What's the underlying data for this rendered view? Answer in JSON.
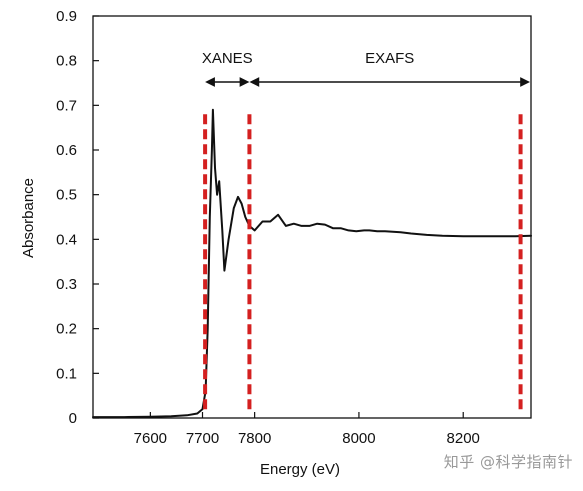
{
  "chart_data": {
    "type": "line",
    "title": "",
    "xlabel": "Energy (eV)",
    "ylabel": "Absorbance",
    "xlim": [
      7490,
      8330
    ],
    "ylim": [
      0,
      0.9
    ],
    "x_ticks": [
      7600,
      7700,
      7800,
      8000,
      8200
    ],
    "y_ticks": [
      0,
      0.1,
      0.2,
      0.3,
      0.4,
      0.5,
      0.6,
      0.7,
      0.8,
      0.9
    ],
    "y_tick_labels": [
      "0",
      "0.1",
      "0.2",
      "0.3",
      "0.4",
      "0.5",
      "0.6",
      "0.7",
      "0.8",
      "0.9"
    ],
    "grid": false,
    "series": [
      {
        "color": "#111111",
        "x": [
          7490,
          7550,
          7600,
          7640,
          7670,
          7690,
          7700,
          7706,
          7710,
          7714,
          7718,
          7720,
          7724,
          7728,
          7732,
          7738,
          7742,
          7750,
          7760,
          7768,
          7775,
          7782,
          7790,
          7800,
          7815,
          7830,
          7845,
          7860,
          7875,
          7890,
          7905,
          7920,
          7935,
          7950,
          7965,
          7980,
          7995,
          8010,
          8020,
          8035,
          8050,
          8065,
          8080,
          8100,
          8130,
          8160,
          8200,
          8250,
          8300,
          8330
        ],
        "values": [
          0.002,
          0.002,
          0.003,
          0.004,
          0.006,
          0.01,
          0.02,
          0.06,
          0.2,
          0.45,
          0.6,
          0.69,
          0.56,
          0.5,
          0.53,
          0.42,
          0.33,
          0.4,
          0.47,
          0.495,
          0.48,
          0.45,
          0.43,
          0.42,
          0.44,
          0.44,
          0.455,
          0.43,
          0.435,
          0.43,
          0.43,
          0.435,
          0.433,
          0.425,
          0.425,
          0.42,
          0.418,
          0.42,
          0.42,
          0.418,
          0.418,
          0.417,
          0.416,
          0.413,
          0.41,
          0.408,
          0.407,
          0.407,
          0.407,
          0.408
        ]
      }
    ],
    "regions": [
      {
        "label": "XANES",
        "x_start": 7705,
        "x_end": 7790
      },
      {
        "label": "EXAFS",
        "x_start": 7790,
        "x_end": 8330
      }
    ],
    "markers": [
      7705,
      7790,
      8310
    ],
    "marker_color": "#d42020"
  },
  "watermark": "知乎 @科学指南针"
}
